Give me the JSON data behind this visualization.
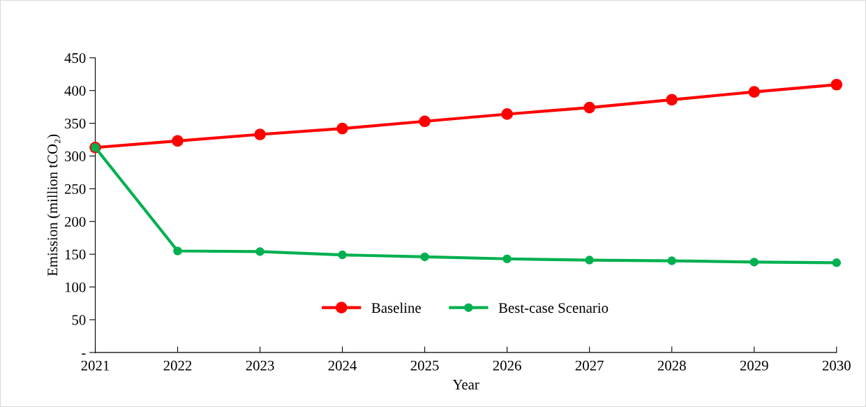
{
  "chart_data": {
    "type": "line",
    "xlabel": "Year",
    "ylabel": "Emission (million tCO₂)",
    "categories": [
      "2021",
      "2022",
      "2023",
      "2024",
      "2025",
      "2026",
      "2027",
      "2028",
      "2029",
      "2030"
    ],
    "series": [
      {
        "name": "Baseline",
        "color": "#ff0000",
        "values": [
          313,
          323,
          333,
          342,
          353,
          364,
          374,
          386,
          398,
          409
        ]
      },
      {
        "name": "Best-case Scenario",
        "color": "#00b050",
        "values": [
          313,
          155,
          154,
          149,
          146,
          143,
          141,
          140,
          138,
          137
        ]
      }
    ],
    "ylim": [
      0,
      450
    ],
    "yticks": [
      {
        "value": 0,
        "label": "-"
      },
      50,
      100,
      150,
      200,
      250,
      300,
      350,
      400,
      450
    ],
    "grid": false,
    "legend": "bottom",
    "marker": "circle",
    "line_style": "solid"
  }
}
